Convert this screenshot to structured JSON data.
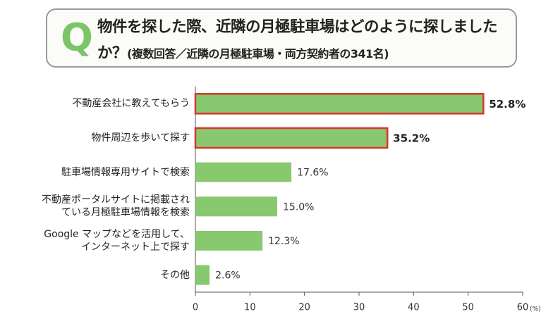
{
  "chart_data": {
    "type": "bar",
    "orientation": "horizontal",
    "title": "物件を探した際、近隣の月極駐車場はどのように探しましたか？",
    "subtitle": "(複数回答／近隣の月極駐車場・両方契約者の341名)",
    "categories": [
      "不動産会社に教えてもらう",
      "物件周辺を歩いて探す",
      "駐車場情報専用サイトで検索",
      "不動産ポータルサイトに掲載され\nている月極駐車場情報を検索",
      "Google マップなどを活用して、\nインターネット上で探す",
      "その他"
    ],
    "values": [
      52.8,
      35.2,
      17.6,
      15.0,
      12.3,
      2.6
    ],
    "value_labels": [
      "52.8%",
      "35.2%",
      "17.6%",
      "15.0%",
      "12.3%",
      "2.6%"
    ],
    "highlighted": [
      true,
      true,
      false,
      false,
      false,
      false
    ],
    "color": "#88c96f",
    "highlight_color": "#d9342b",
    "xlim": [
      0,
      60
    ],
    "xticks": [
      0,
      10,
      20,
      30,
      40,
      50,
      60
    ],
    "xlabel": "(%)",
    "grid": false
  }
}
